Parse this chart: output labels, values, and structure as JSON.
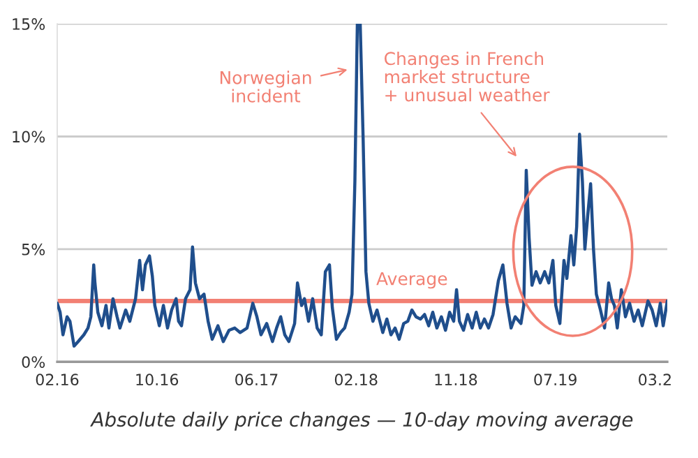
{
  "chart_data": {
    "type": "line",
    "xlabel": "Absolute daily price changes — 10-day moving average",
    "x": [
      "2016-02-01",
      "2016-02-08",
      "2016-02-15",
      "2016-02-25",
      "2016-03-03",
      "2016-03-13",
      "2016-03-23",
      "2016-04-06",
      "2016-04-16",
      "2016-04-23",
      "2016-04-30",
      "2016-05-03",
      "2016-05-10",
      "2016-05-20",
      "2016-05-30",
      "2016-06-06",
      "2016-06-16",
      "2016-06-26",
      "2016-07-03",
      "2016-07-17",
      "2016-07-27",
      "2016-08-10",
      "2016-08-20",
      "2016-08-27",
      "2016-09-03",
      "2016-09-13",
      "2016-09-20",
      "2016-09-26",
      "2016-10-07",
      "2016-10-17",
      "2016-10-27",
      "2016-11-06",
      "2016-11-17",
      "2016-11-23",
      "2016-11-30",
      "2016-12-10",
      "2016-12-21",
      "2016-12-27",
      "2017-01-03",
      "2017-01-13",
      "2017-01-24",
      "2017-02-03",
      "2017-02-13",
      "2017-02-27",
      "2017-03-12",
      "2017-03-26",
      "2017-04-09",
      "2017-04-22",
      "2017-05-09",
      "2017-05-23",
      "2017-06-02",
      "2017-06-12",
      "2017-06-26",
      "2017-07-10",
      "2017-07-20",
      "2017-07-30",
      "2017-08-09",
      "2017-08-19",
      "2017-09-02",
      "2017-09-09",
      "2017-09-19",
      "2017-09-26",
      "2017-10-06",
      "2017-10-16",
      "2017-10-27",
      "2017-11-06",
      "2017-11-16",
      "2017-11-26",
      "2017-12-03",
      "2017-12-13",
      "2017-12-23",
      "2018-01-02",
      "2018-01-13",
      "2018-01-20",
      "2018-01-27",
      "2018-02-02",
      "2018-02-09",
      "2018-02-16",
      "2018-02-23",
      "2018-03-02",
      "2018-03-12",
      "2018-03-22",
      "2018-04-05",
      "2018-04-15",
      "2018-04-25",
      "2018-05-05",
      "2018-05-15",
      "2018-05-26",
      "2018-06-05",
      "2018-06-15",
      "2018-06-25",
      "2018-07-06",
      "2018-07-16",
      "2018-07-26",
      "2018-08-05",
      "2018-08-15",
      "2018-08-26",
      "2018-09-05",
      "2018-09-15",
      "2018-09-25",
      "2018-10-02",
      "2018-10-09",
      "2018-10-19",
      "2018-10-29",
      "2018-11-09",
      "2018-11-19",
      "2018-11-29",
      "2018-12-09",
      "2018-12-19",
      "2018-12-30",
      "2019-01-12",
      "2019-01-23",
      "2019-02-02",
      "2019-02-12",
      "2019-02-22",
      "2019-03-08",
      "2019-03-15",
      "2019-03-21",
      "2019-03-28",
      "2019-04-04",
      "2019-04-14",
      "2019-04-24",
      "2019-05-05",
      "2019-05-15",
      "2019-05-25",
      "2019-06-01",
      "2019-06-11",
      "2019-06-21",
      "2019-06-28",
      "2019-07-08",
      "2019-07-15",
      "2019-07-22",
      "2019-07-29",
      "2019-08-05",
      "2019-08-11",
      "2019-08-18",
      "2019-08-25",
      "2019-09-01",
      "2019-09-08",
      "2019-09-18",
      "2019-09-28",
      "2019-10-08",
      "2019-10-15",
      "2019-10-22",
      "2019-10-29",
      "2019-11-08",
      "2019-11-18",
      "2019-11-28",
      "2019-12-09",
      "2019-12-19",
      "2019-12-29",
      "2020-01-12",
      "2020-01-22",
      "2020-02-01",
      "2020-02-11",
      "2020-02-18",
      "2020-02-28"
    ],
    "series": [
      {
        "color": "#1f4e8c",
        "values": [
          2.6,
          2.2,
          1.2,
          2.0,
          1.8,
          0.7,
          0.9,
          1.2,
          1.5,
          2.0,
          4.3,
          3.5,
          2.2,
          1.6,
          2.5,
          1.5,
          2.8,
          2.0,
          1.5,
          2.3,
          1.8,
          2.8,
          4.5,
          3.2,
          4.3,
          4.7,
          3.8,
          2.5,
          1.6,
          2.5,
          1.5,
          2.3,
          2.8,
          1.8,
          1.6,
          2.8,
          3.2,
          5.1,
          3.5,
          2.8,
          3.0,
          1.8,
          1.0,
          1.6,
          0.9,
          1.4,
          1.5,
          1.3,
          1.5,
          2.6,
          2.0,
          1.2,
          1.7,
          0.9,
          1.5,
          2.0,
          1.2,
          0.9,
          1.7,
          3.5,
          2.5,
          2.8,
          1.8,
          2.8,
          1.5,
          1.2,
          4.0,
          4.3,
          2.4,
          1.0,
          1.3,
          1.5,
          2.2,
          3.0,
          8.0,
          15.0,
          15.0,
          10.0,
          4.0,
          2.6,
          1.8,
          2.3,
          1.3,
          1.9,
          1.2,
          1.5,
          1.0,
          1.7,
          1.8,
          2.3,
          2.0,
          1.9,
          2.1,
          1.6,
          2.2,
          1.5,
          2.0,
          1.4,
          2.2,
          1.8,
          3.2,
          1.8,
          1.4,
          2.1,
          1.5,
          2.2,
          1.5,
          1.9,
          1.5,
          2.1,
          3.6,
          4.3,
          2.6,
          1.5,
          2.0,
          1.7,
          2.5,
          8.5,
          5.5,
          3.4,
          4.0,
          3.5,
          4.0,
          3.5,
          4.5,
          2.5,
          1.7,
          4.5,
          3.7,
          5.6,
          4.3,
          6.0,
          10.1,
          8.0,
          5.0,
          6.5,
          7.9,
          5.0,
          3.0,
          2.3,
          1.5,
          3.5,
          2.8,
          2.5,
          1.5,
          3.2,
          2.0,
          2.6,
          1.8,
          2.3,
          1.6,
          2.7,
          2.3,
          1.6,
          2.6,
          1.6,
          2.7
        ]
      }
    ],
    "xlim": [
      "2016-02-01",
      "2020-02-28"
    ],
    "xticks": [
      {
        "value": "2016-02-01",
        "label": "02.16"
      },
      {
        "value": "2016-10-01",
        "label": "10.16"
      },
      {
        "value": "2017-06-01",
        "label": "06.17"
      },
      {
        "value": "2018-01-30",
        "label": "02.18"
      },
      {
        "value": "2018-09-30",
        "label": "11.18"
      },
      {
        "value": "2019-05-31",
        "label": "07.19"
      },
      {
        "value": "2020-01-29",
        "label": "03.2"
      }
    ],
    "ylim": [
      0,
      15
    ],
    "yticks": [
      {
        "value": 0,
        "label": "0%"
      },
      {
        "value": 5,
        "label": "5%"
      },
      {
        "value": 10,
        "label": "10%"
      },
      {
        "value": 15,
        "label": "15%"
      }
    ],
    "grid": "y",
    "line_style": "solid",
    "ref_lines": [
      {
        "axis": "y",
        "value": 2.7,
        "label": "Average",
        "color": "#f28073"
      }
    ],
    "annotations": [
      {
        "text": "Norwegian\nincident",
        "x": "2018-01-18",
        "y": 13
      },
      "Changes in French\nmarket structure\n+ unusual weather"
    ]
  }
}
